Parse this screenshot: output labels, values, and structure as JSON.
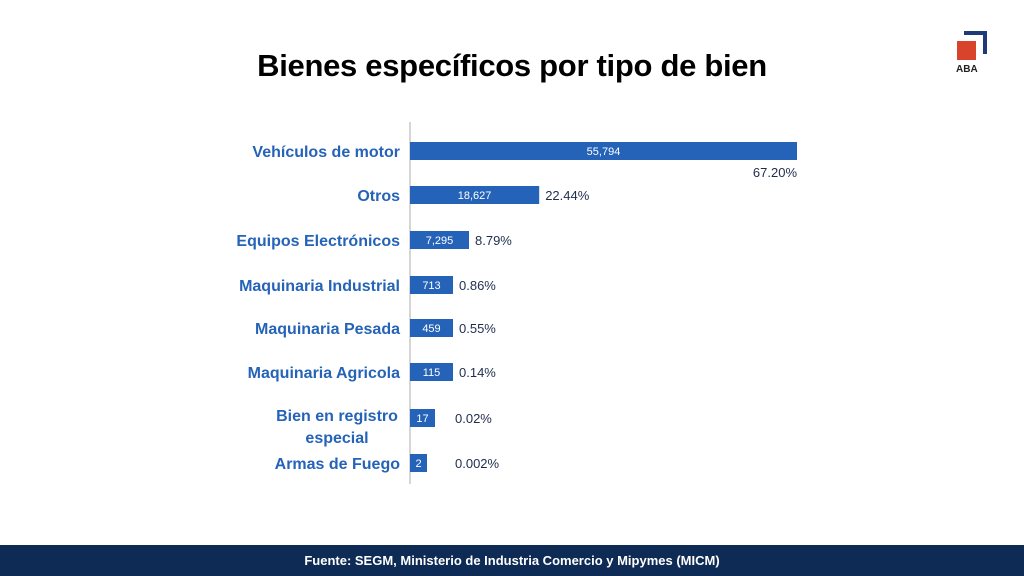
{
  "title": "Bienes específicos por tipo de bien",
  "logo_text": "ABA",
  "footer": "Fuente: SEGM, Ministerio de Industria Comercio y Mipymes (MICM)",
  "colors": {
    "bar": "#2563b8",
    "label": "#2563b8",
    "pct": "#1f2d4d",
    "footer": "#0e2b55"
  },
  "chart_data": {
    "type": "bar",
    "orientation": "horizontal",
    "title": "Bienes específicos por tipo de bien",
    "categories": [
      "Vehículos de motor",
      "Otros",
      "Equipos Electrónicos",
      "Maquinaria Industrial",
      "Maquinaria Pesada",
      "Maquinaria Agricola",
      "Bien en registro especial",
      "Armas de Fuego"
    ],
    "values": [
      55794,
      18627,
      7295,
      713,
      459,
      115,
      17,
      2
    ],
    "value_labels": [
      "55,794",
      "18,627",
      "7,295",
      "713",
      "459",
      "115",
      "17",
      "2"
    ],
    "percent_labels": [
      "67.20%",
      "22.44%",
      "8.79%",
      "0.86%",
      "0.55%",
      "0.14%",
      "0.02%",
      "0.002%"
    ],
    "xlabel": "",
    "ylabel": "",
    "grid": false,
    "legend": "none"
  }
}
